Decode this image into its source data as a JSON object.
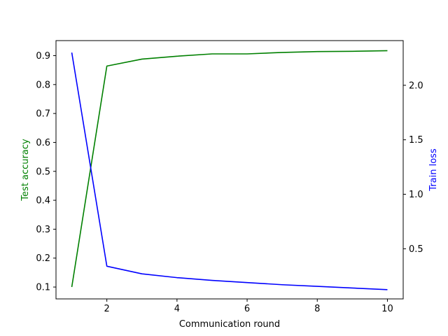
{
  "chart_data": {
    "type": "line",
    "title": "",
    "xlabel": "Communication round",
    "ylabel_left": "Test accuracy",
    "ylabel_right": "Train loss",
    "xlim": [
      0.55,
      10.45
    ],
    "ylim_left": [
      0.059,
      0.952
    ],
    "ylim_right": [
      0.04,
      2.41
    ],
    "x_ticks": [
      2,
      4,
      6,
      8,
      10
    ],
    "y_ticks_left": [
      0.1,
      0.2,
      0.3,
      0.4,
      0.5,
      0.6,
      0.7,
      0.8,
      0.9
    ],
    "y_ticks_right": [
      0.5,
      1.0,
      1.5,
      2.0
    ],
    "grid": false,
    "legend": "none",
    "x": [
      1,
      2,
      3,
      4,
      5,
      6,
      7,
      8,
      9,
      10
    ],
    "series": [
      {
        "axis": "left",
        "color": "#008000",
        "values": [
          0.1,
          0.864,
          0.888,
          0.898,
          0.906,
          0.906,
          0.911,
          0.914,
          0.915,
          0.917
        ]
      },
      {
        "axis": "right",
        "color": "#0000ff",
        "values": [
          2.3,
          0.34,
          0.27,
          0.235,
          0.21,
          0.19,
          0.17,
          0.155,
          0.14,
          0.125
        ]
      }
    ]
  }
}
